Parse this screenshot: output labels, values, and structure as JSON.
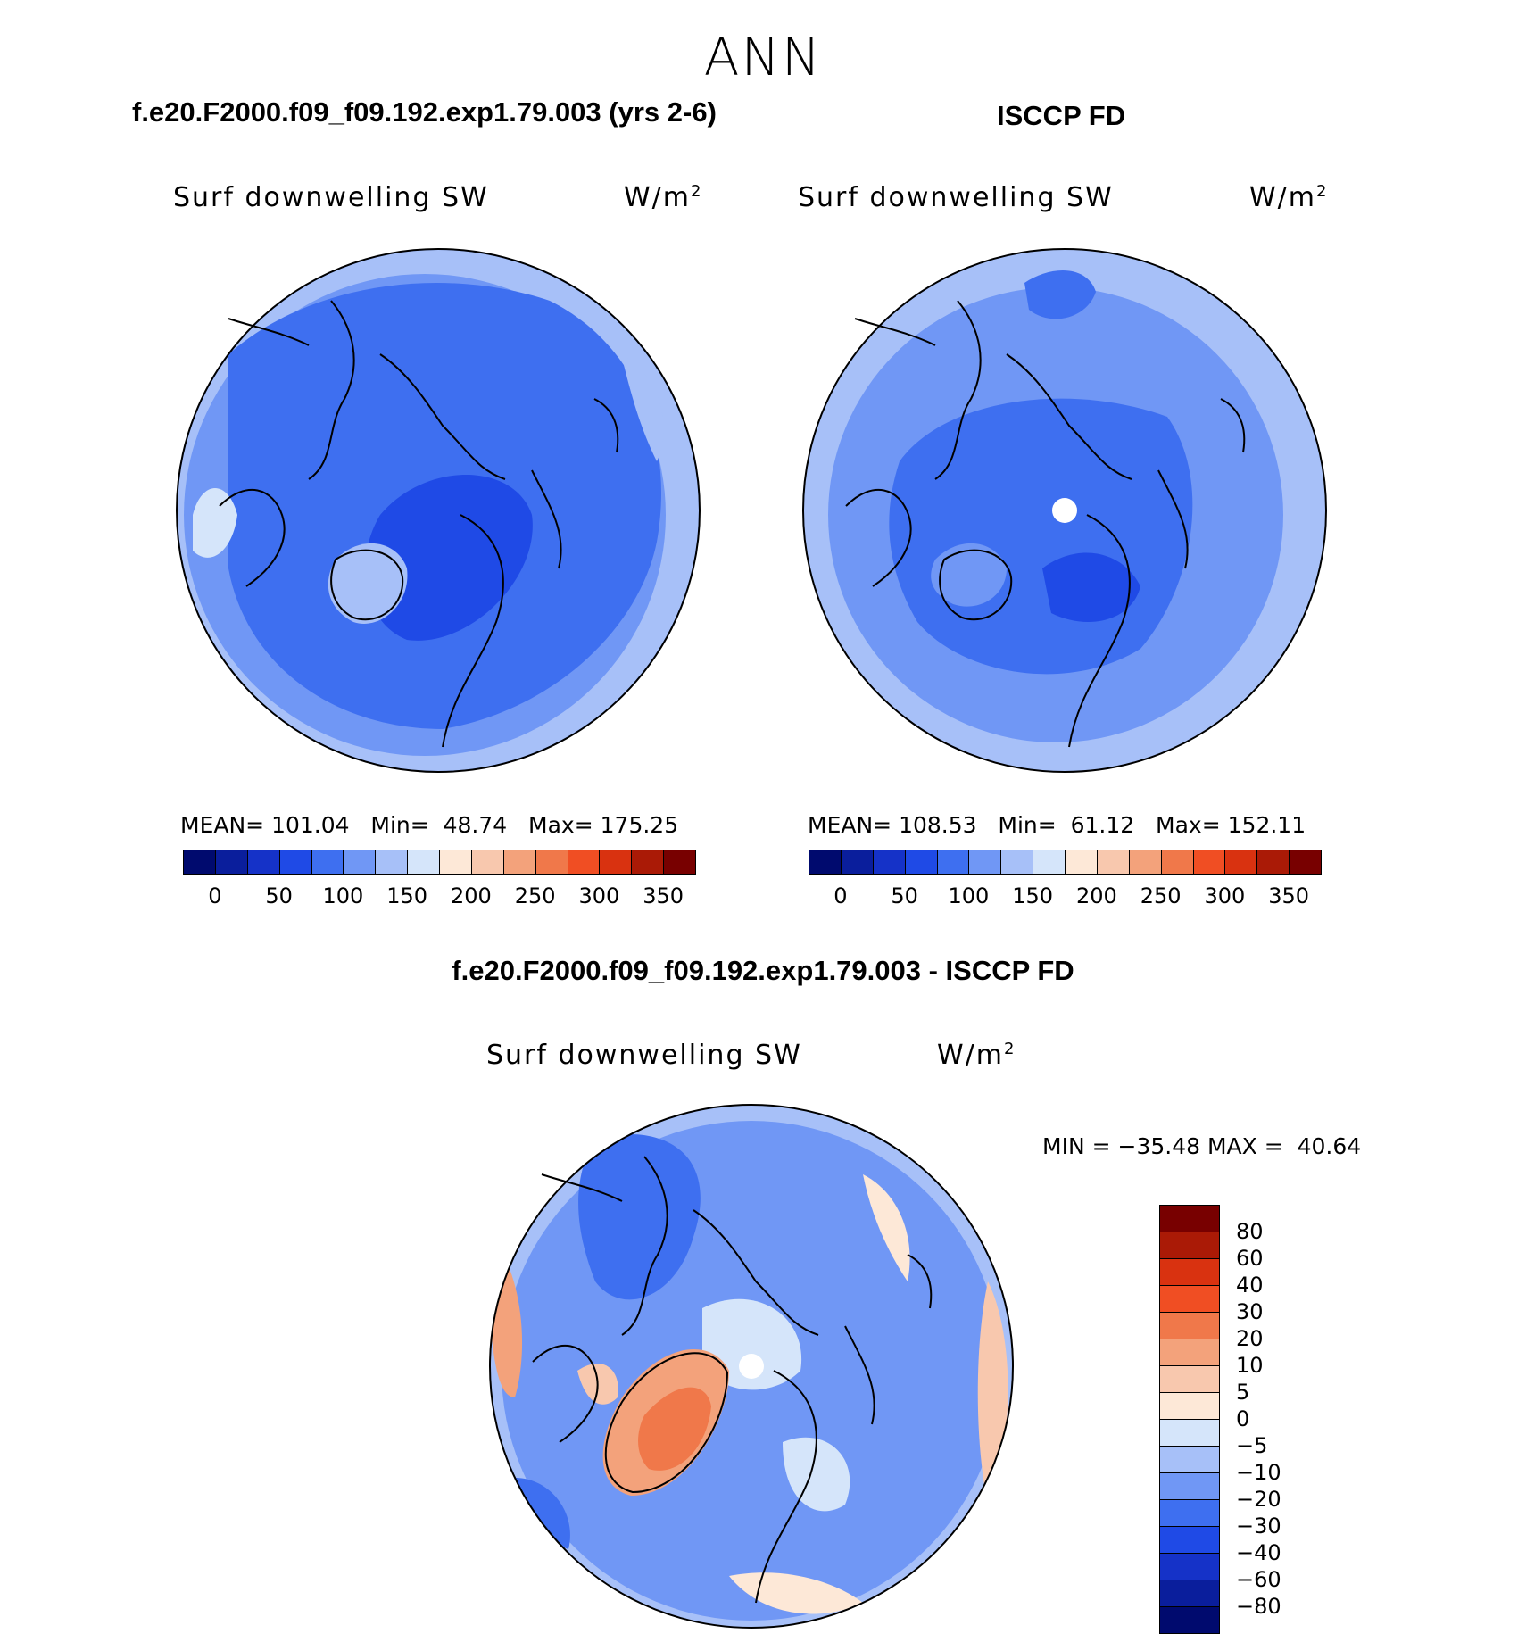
{
  "page": {
    "title": "ANN"
  },
  "panels": [
    {
      "title": "f.e20.F2000.f09_f09.192.exp1.79.003 (yrs 2-6)",
      "variable": "Surf downwelling SW",
      "units": "W/m",
      "units_exponent": "2",
      "mean_label": "MEAN=",
      "mean": "101.04",
      "min_label": "Min=",
      "min": "48.74",
      "max_label": "Max=",
      "max": "175.25",
      "projection": "north-polar-stereographic",
      "colorbar": {
        "colors": [
          "#000a6e",
          "#0a1e9c",
          "#1532c8",
          "#1f4ae6",
          "#3e6ff0",
          "#7097f5",
          "#a7c0f8",
          "#d5e5fa",
          "#fde8d7",
          "#f8c8ae",
          "#f3a27b",
          "#f0784a",
          "#f04e23",
          "#d93210",
          "#aa1a06",
          "#780000"
        ],
        "tick_labels": [
          "0",
          "50",
          "100",
          "150",
          "200",
          "250",
          "300",
          "350"
        ]
      }
    },
    {
      "title": "ISCCP FD",
      "variable": "Surf downwelling SW",
      "units": "W/m",
      "units_exponent": "2",
      "mean_label": "MEAN=",
      "mean": "108.53",
      "min_label": "Min=",
      "min": "61.12",
      "max_label": "Max=",
      "max": "152.11",
      "projection": "north-polar-stereographic",
      "colorbar": {
        "colors": [
          "#000a6e",
          "#0a1e9c",
          "#1532c8",
          "#1f4ae6",
          "#3e6ff0",
          "#7097f5",
          "#a7c0f8",
          "#d5e5fa",
          "#fde8d7",
          "#f8c8ae",
          "#f3a27b",
          "#f0784a",
          "#f04e23",
          "#d93210",
          "#aa1a06",
          "#780000"
        ],
        "tick_labels": [
          "0",
          "50",
          "100",
          "150",
          "200",
          "250",
          "300",
          "350"
        ]
      }
    }
  ],
  "difference": {
    "title": "f.e20.F2000.f09_f09.192.exp1.79.003 - ISCCP FD",
    "variable": "Surf downwelling SW",
    "units": "W/m",
    "units_exponent": "2",
    "min_label": "MIN =",
    "min": "−35.48",
    "max_label": "MAX =",
    "max": "40.64",
    "colorbar": {
      "colors": [
        "#780000",
        "#aa1a06",
        "#d93210",
        "#f04e23",
        "#f0784a",
        "#f3a27b",
        "#f8c8ae",
        "#fde8d7",
        "#d5e5fa",
        "#a7c0f8",
        "#7097f5",
        "#3e6ff0",
        "#1f4ae6",
        "#1532c8",
        "#0a1e9c",
        "#000a6e"
      ],
      "tick_labels": [
        "80",
        "60",
        "40",
        "30",
        "20",
        "10",
        "5",
        "0",
        "−5",
        "−10",
        "−20",
        "−30",
        "−40",
        "−60",
        "−80"
      ]
    }
  }
}
